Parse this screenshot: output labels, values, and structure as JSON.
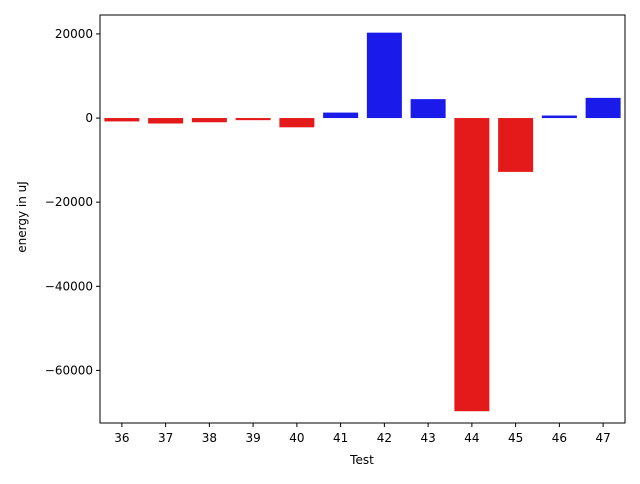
{
  "chart_data": {
    "type": "bar",
    "title": "",
    "xlabel": "Test",
    "ylabel": "energy in uJ",
    "categories": [
      "36",
      "37",
      "38",
      "39",
      "40",
      "41",
      "42",
      "43",
      "44",
      "45",
      "46",
      "47"
    ],
    "values": [
      -800,
      -1300,
      -1000,
      -500,
      -2200,
      1300,
      20300,
      4500,
      -69700,
      -12800,
      600,
      4800
    ],
    "ylim": [
      -72500,
      24500
    ],
    "yticks": [
      -60000,
      -40000,
      -20000,
      0,
      20000
    ],
    "ytick_labels": [
      "−60000",
      "−40000",
      "−20000",
      "0",
      "20000"
    ],
    "grid": false,
    "legend": "none",
    "colors": {
      "positive": "#1a1aeb",
      "negative": "#e41a1a"
    }
  }
}
